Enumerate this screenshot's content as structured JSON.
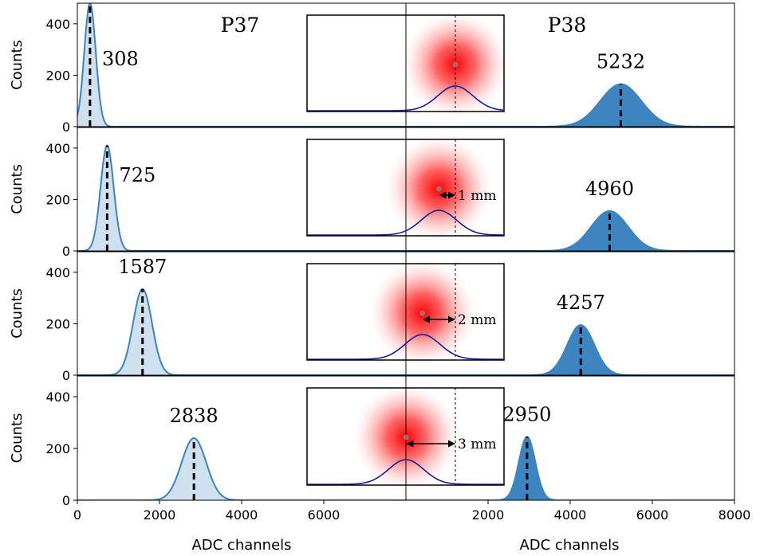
{
  "chart_data": {
    "type": "histogram",
    "x_range": [
      0,
      8000
    ],
    "y_range": [
      0,
      480
    ],
    "y_ticks": [
      0,
      200,
      400
    ],
    "ylabel": "Counts",
    "left": {
      "title": "P37",
      "xlabel": "ADC channels",
      "x_ticks": [
        {
          "value": 0,
          "label": "0"
        },
        {
          "value": 2000,
          "label": "2000"
        },
        {
          "value": 4000,
          "label": "4000"
        },
        {
          "value": 6000,
          "label": "6000"
        }
      ],
      "color_fill": "#cfe0ee",
      "color_line": "#3a84c2"
    },
    "right": {
      "title": "P38",
      "xlabel": "ADC channels",
      "x_ticks": [
        {
          "value": 2000,
          "label": "2000"
        },
        {
          "value": 4000,
          "label": "4000"
        },
        {
          "value": 6000,
          "label": "6000"
        },
        {
          "value": 8000,
          "label": "8000"
        }
      ],
      "color_fill": "#3d85c0",
      "color_line": "#3a84c2"
    },
    "rows": [
      {
        "left_peak": 308,
        "left_sigma": 140,
        "left_height": 480,
        "left_label": "308",
        "right_peak": 5232,
        "right_sigma": 500,
        "right_height": 165,
        "right_label": "5232",
        "offset_label": ""
      },
      {
        "left_peak": 725,
        "left_sigma": 160,
        "left_height": 410,
        "left_label": "725",
        "right_peak": 4960,
        "right_sigma": 450,
        "right_height": 155,
        "right_label": "4960",
        "offset_label": "1 mm"
      },
      {
        "left_peak": 1587,
        "left_sigma": 230,
        "left_height": 335,
        "left_label": "1587",
        "right_peak": 4257,
        "right_sigma": 330,
        "right_height": 195,
        "right_label": "4257",
        "offset_label": "2 mm"
      },
      {
        "left_peak": 2838,
        "left_sigma": 300,
        "left_height": 240,
        "left_label": "2838",
        "right_peak": 2950,
        "right_sigma": 200,
        "right_height": 245,
        "right_label": "2950",
        "offset_label": "3 mm"
      }
    ]
  }
}
